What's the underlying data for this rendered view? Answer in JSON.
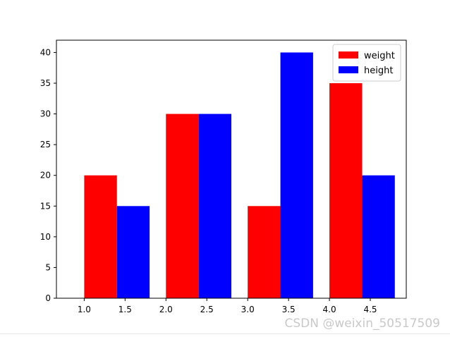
{
  "chart_data": {
    "type": "bar",
    "title": "",
    "xlabel": "",
    "ylabel": "",
    "series": [
      {
        "name": "weight",
        "color": "#ff0000",
        "x": [
          1.0,
          2.0,
          3.0,
          4.0
        ],
        "values": [
          20,
          30,
          15,
          35
        ],
        "bar_width": 0.4,
        "align": "edge"
      },
      {
        "name": "height",
        "color": "#0000ff",
        "x": [
          1.4,
          2.4,
          3.4,
          4.4
        ],
        "values": [
          15,
          30,
          40,
          20
        ],
        "bar_width": 0.4,
        "align": "edge"
      }
    ],
    "xticks": [
      "1.0",
      "1.5",
      "2.0",
      "2.5",
      "3.0",
      "3.5",
      "4.0",
      "4.5"
    ],
    "yticks": [
      "0",
      "5",
      "10",
      "15",
      "20",
      "25",
      "30",
      "35",
      "40"
    ],
    "xlim": [
      0.66,
      4.94
    ],
    "ylim": [
      0,
      42
    ],
    "grid": false,
    "legend": "top-right"
  },
  "watermark": {
    "text": "CSDN @weixin_50517509"
  }
}
